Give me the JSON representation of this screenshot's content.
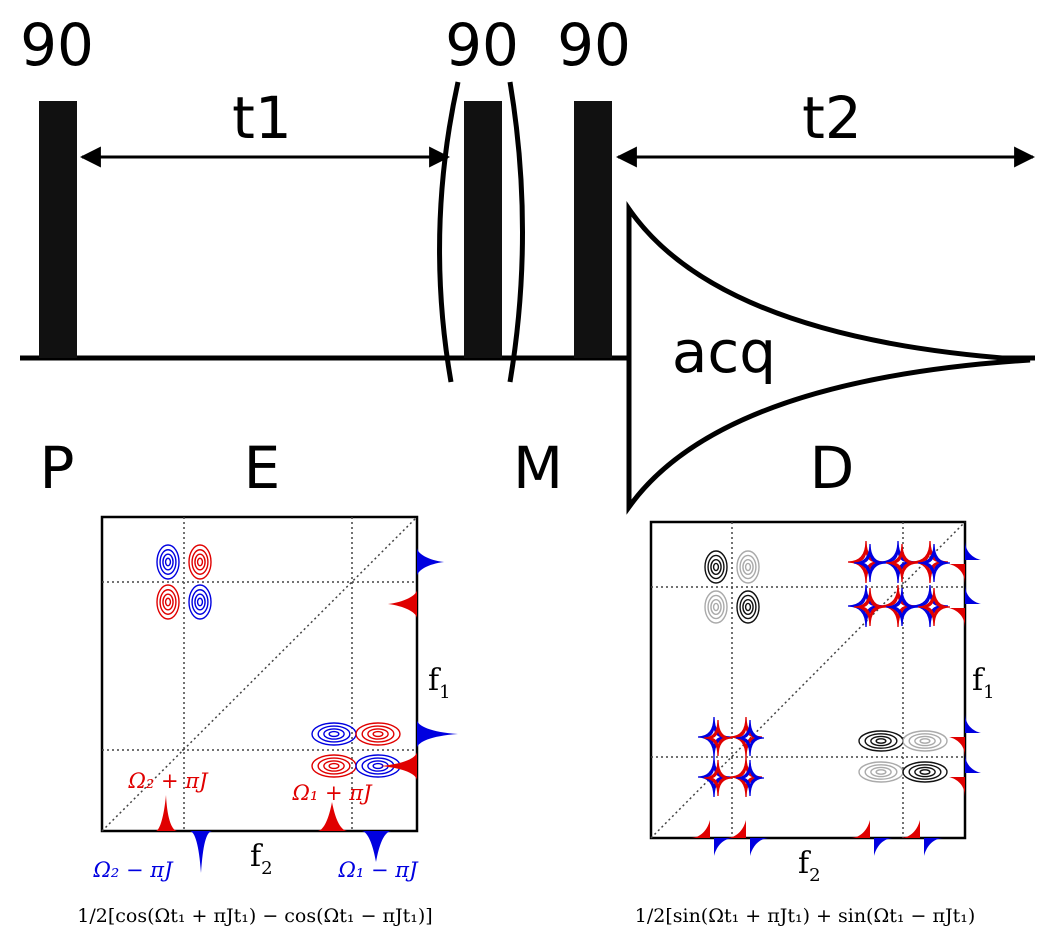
{
  "pulse_sequence": {
    "pulse_labels": [
      "90",
      "90",
      "90"
    ],
    "delay_labels": {
      "t1": "t1",
      "t2": "t2"
    },
    "acquisition_label": "acq",
    "stage_labels": [
      "P",
      "E",
      "M",
      "D"
    ]
  },
  "spectrum_left": {
    "axis_labels": {
      "f1": "f",
      "f1_sub": "1",
      "f2": "f",
      "f2_sub": "2"
    },
    "peak_labels": {
      "omega2_plus": "Ω₂ + πJ",
      "omega1_plus": "Ω₁ + πJ",
      "omega2_minus": "Ω₂ − πJ",
      "omega1_minus": "Ω₁ − πJ"
    },
    "caption": "1/2[cos(Ωt₁ + πJt₁) − cos(Ωt₁ − πJt₁)]"
  },
  "spectrum_right": {
    "axis_labels": {
      "f1": "f",
      "f1_sub": "1",
      "f2": "f",
      "f2_sub": "2"
    },
    "caption": "1/2[sin(Ωt₁ + πJt₁) + sin(Ωt₁ − πJt₁)"
  },
  "colors": {
    "positive": "#e00000",
    "negative": "#0000e0",
    "dark": "#111111",
    "grey": "#aaaaaa"
  }
}
